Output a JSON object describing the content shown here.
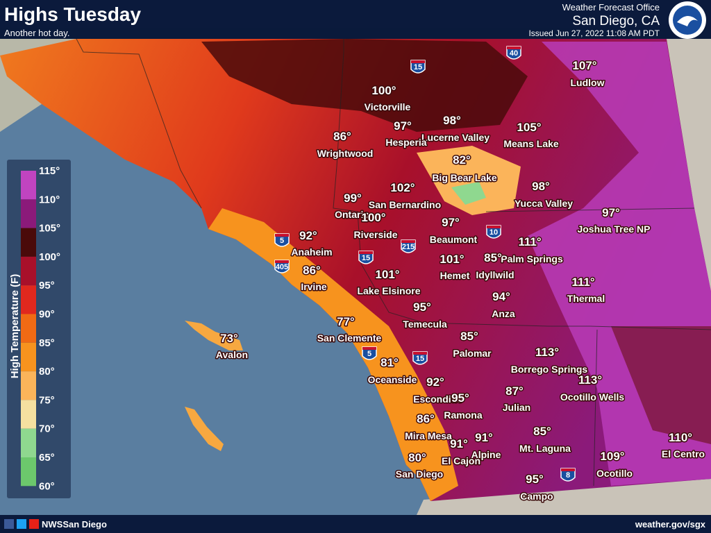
{
  "header": {
    "title": "Highs Tuesday",
    "subtitle": "Another hot day.",
    "office": "Weather Forecast Office",
    "location": "San Diego, CA",
    "issued": "Issued Jun 27, 2022 11:08 AM PDT"
  },
  "legend": {
    "title": "High Temperature (F)",
    "labels": [
      "115°",
      "110°",
      "105°",
      "100°",
      "95°",
      "90°",
      "85°",
      "80°",
      "75°",
      "70°",
      "65°",
      "60°"
    ]
  },
  "cities": [
    {
      "temp": "107°",
      "name": "Ludlow"
    },
    {
      "temp": "100°",
      "name": "Victorville"
    },
    {
      "temp": "98°",
      "name": "Lucerne Valley"
    },
    {
      "temp": "97°",
      "name": "Hesperia"
    },
    {
      "temp": "105°",
      "name": "Means Lake"
    },
    {
      "temp": "86°",
      "name": "Wrightwood"
    },
    {
      "temp": "82°",
      "name": "Big Bear Lake"
    },
    {
      "temp": "102°",
      "name": "San Bernardino"
    },
    {
      "temp": "98°",
      "name": "Yucca Valley"
    },
    {
      "temp": "99°",
      "name": "Ontario"
    },
    {
      "temp": "100°",
      "name": "Riverside"
    },
    {
      "temp": "97°",
      "name": "Joshua Tree NP"
    },
    {
      "temp": "97°",
      "name": "Beaumont"
    },
    {
      "temp": "92°",
      "name": "Anaheim"
    },
    {
      "temp": "111°",
      "name": "Palm Springs"
    },
    {
      "temp": "101°",
      "name": "Hemet"
    },
    {
      "temp": "85°",
      "name": "Idyllwild"
    },
    {
      "temp": "86°",
      "name": "Irvine"
    },
    {
      "temp": "101°",
      "name": "Lake Elsinore"
    },
    {
      "temp": "111°",
      "name": "Thermal"
    },
    {
      "temp": "94°",
      "name": "Anza"
    },
    {
      "temp": "95°",
      "name": "Temecula"
    },
    {
      "temp": "77°",
      "name": "San Clemente"
    },
    {
      "temp": "73°",
      "name": "Avalon"
    },
    {
      "temp": "85°",
      "name": "Palomar"
    },
    {
      "temp": "113°",
      "name": "Borrego Springs"
    },
    {
      "temp": "81°",
      "name": "Oceanside"
    },
    {
      "temp": "92°",
      "name": "Escondido"
    },
    {
      "temp": "113°",
      "name": "Ocotillo Wells"
    },
    {
      "temp": "87°",
      "name": "Julian"
    },
    {
      "temp": "95°",
      "name": "Ramona"
    },
    {
      "temp": "86°",
      "name": "Mira Mesa"
    },
    {
      "temp": "91°",
      "name": "El Cajon"
    },
    {
      "temp": "91°",
      "name": "Alpine"
    },
    {
      "temp": "85°",
      "name": "Mt. Laguna"
    },
    {
      "temp": "110°",
      "name": "El Centro"
    },
    {
      "temp": "80°",
      "name": "San Diego"
    },
    {
      "temp": "109°",
      "name": "Ocotillo"
    },
    {
      "temp": "95°",
      "name": "Campo"
    }
  ],
  "shields": [
    "15",
    "40",
    "5",
    "10",
    "215",
    "405",
    "15",
    "5",
    "15",
    "8"
  ],
  "footer": {
    "social": "NWSSan Diego",
    "url": "weather.gov/sgx"
  }
}
